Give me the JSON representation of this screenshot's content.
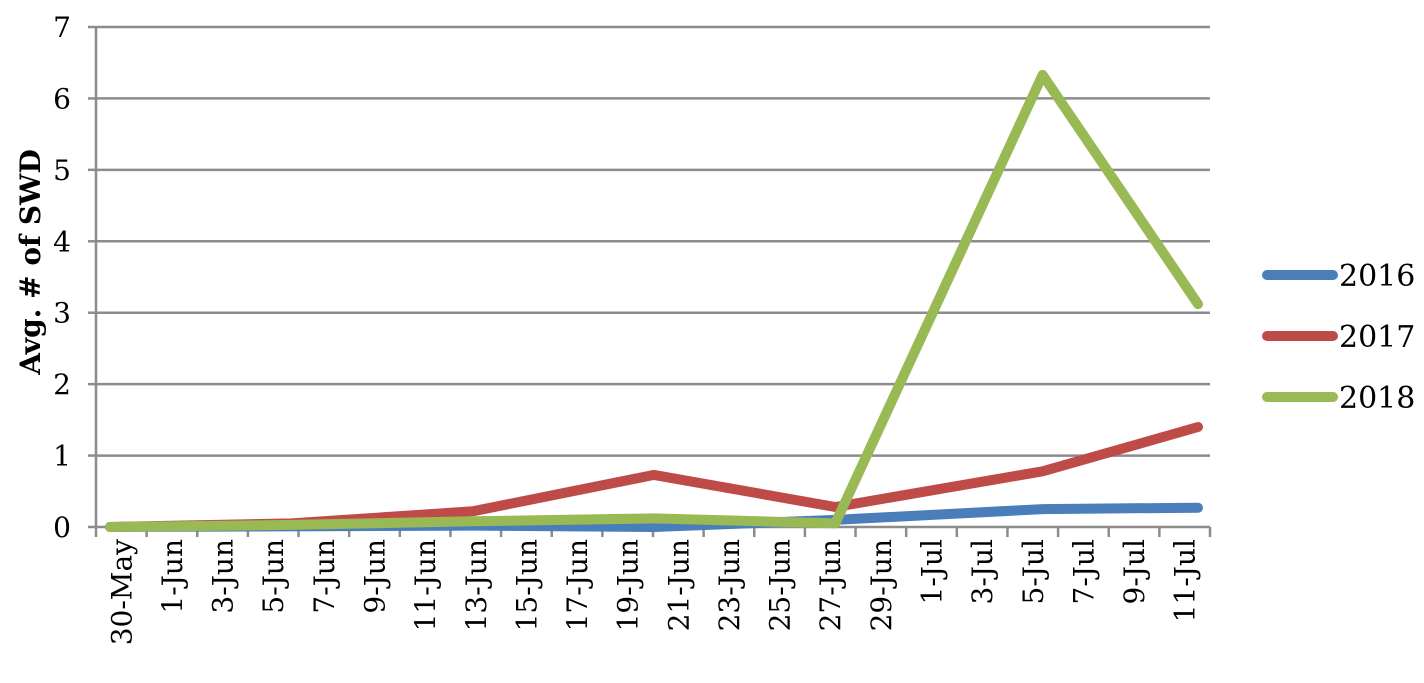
{
  "chart_data": {
    "type": "line",
    "title": "",
    "xlabel": "",
    "ylabel": "Avg. # of SWD",
    "ylim": [
      0,
      7
    ],
    "yticks": [
      0,
      1,
      2,
      3,
      4,
      5,
      6,
      7
    ],
    "grid": "horizontal",
    "legend_position": "right",
    "xtick_labels": [
      "30-May",
      "1-Jun",
      "3-Jun",
      "5-Jun",
      "7-Jun",
      "9-Jun",
      "11-Jun",
      "13-Jun",
      "15-Jun",
      "17-Jun",
      "19-Jun",
      "21-Jun",
      "23-Jun",
      "25-Jun",
      "27-Jun",
      "29-Jun",
      "1-Jul",
      "3-Jul",
      "5-Jul",
      "7-Jul",
      "9-Jul",
      "11-Jul"
    ],
    "x_dates": [
      "2018-05-30",
      "2018-07-11"
    ],
    "series": [
      {
        "name": "2016",
        "color": "#4a7ebb",
        "x": [
          "30-May",
          "13-Jun",
          "20-Jun",
          "27-Jun",
          "5-Jul",
          "11-Jul"
        ],
        "y": [
          0.0,
          0.02,
          0.0,
          0.1,
          0.25,
          0.27
        ]
      },
      {
        "name": "2017",
        "color": "#be4b48",
        "x": [
          "30-May",
          "6-Jun",
          "13-Jun",
          "20-Jun",
          "27-Jun",
          "5-Jul",
          "11-Jul"
        ],
        "y": [
          0.0,
          0.05,
          0.22,
          0.73,
          0.28,
          0.78,
          1.4
        ]
      },
      {
        "name": "2018",
        "color": "#98b954",
        "x": [
          "30-May",
          "6-Jun",
          "13-Jun",
          "20-Jun",
          "27-Jun",
          "5-Jul",
          "11-Jul"
        ],
        "y": [
          0.0,
          0.03,
          0.08,
          0.12,
          0.05,
          6.33,
          3.12
        ]
      }
    ]
  }
}
